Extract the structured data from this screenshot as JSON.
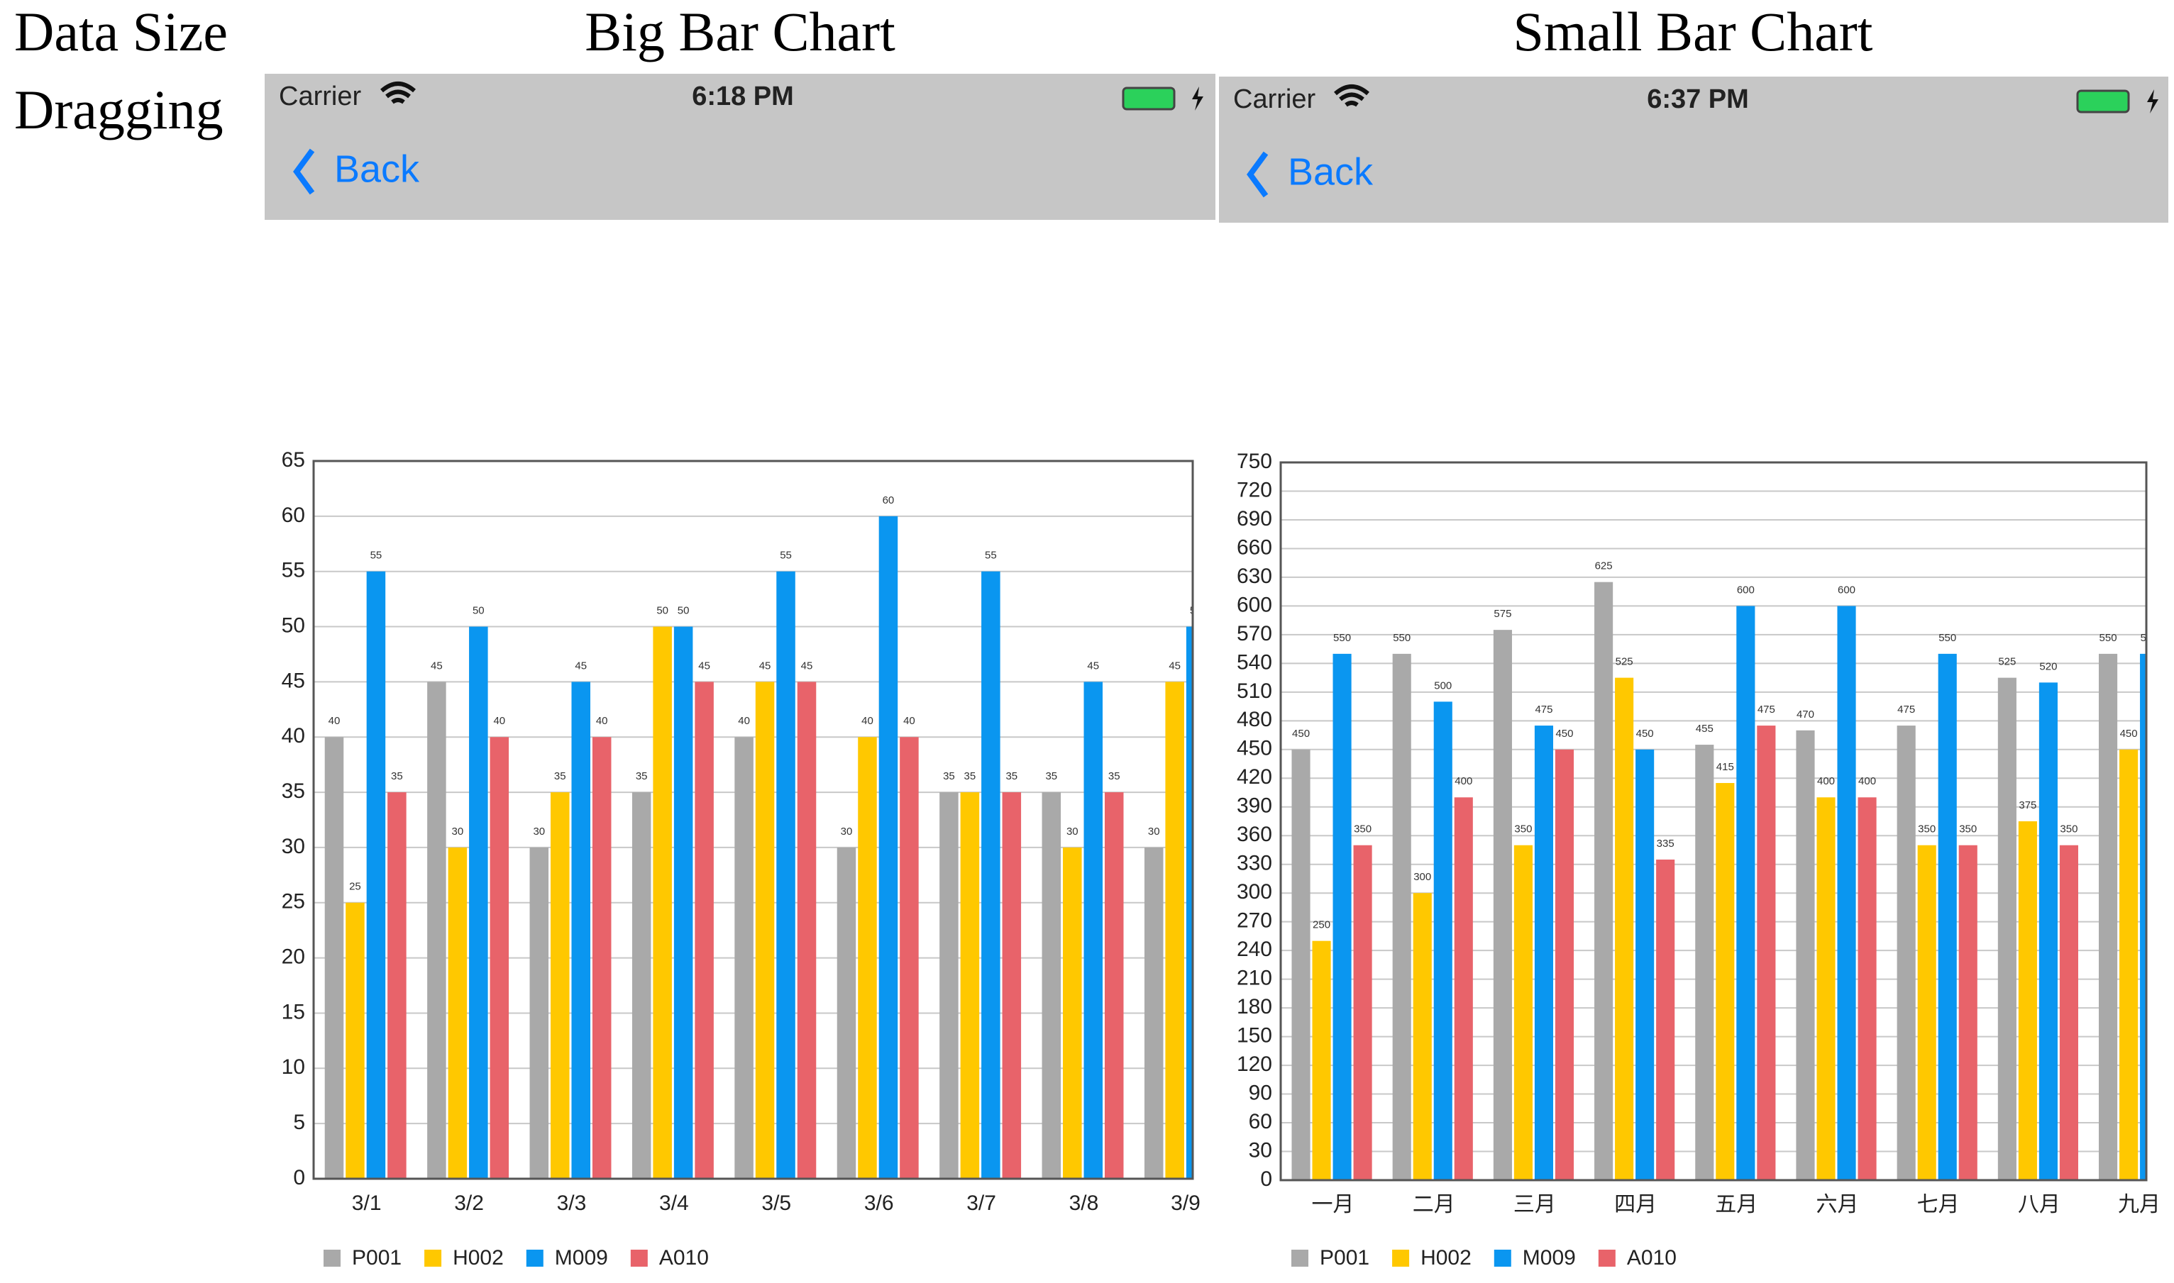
{
  "header": {
    "side_label_1": "Data Size",
    "side_label_2": "Dragging",
    "left_title": "Big Bar Chart",
    "right_title": "Small Bar Chart"
  },
  "phones": [
    {
      "carrier": "Carrier",
      "time": "6:18 PM",
      "back": "Back"
    },
    {
      "carrier": "Carrier",
      "time": "6:37 PM",
      "back": "Back"
    }
  ],
  "chart_data": [
    {
      "type": "bar",
      "categories": [
        "3/1",
        "3/2",
        "3/3",
        "3/4",
        "3/5",
        "3/6",
        "3/7",
        "3/8",
        "3/9"
      ],
      "series": [
        {
          "name": "P001",
          "color": "#a9a9a9",
          "values": [
            40,
            45,
            30,
            35,
            40,
            30,
            35,
            35,
            30
          ]
        },
        {
          "name": "H002",
          "color": "#ffc800",
          "values": [
            25,
            30,
            35,
            50,
            45,
            40,
            35,
            30,
            45
          ]
        },
        {
          "name": "M009",
          "color": "#0a96f0",
          "values": [
            55,
            50,
            45,
            50,
            55,
            60,
            55,
            45,
            50
          ]
        },
        {
          "name": "A010",
          "color": "#e8636a",
          "values": [
            35,
            40,
            40,
            45,
            45,
            40,
            35,
            35,
            null
          ]
        }
      ],
      "ylim": [
        0,
        65
      ],
      "yticks": [
        0,
        5,
        10,
        15,
        20,
        25,
        30,
        35,
        40,
        45,
        50,
        55,
        60,
        65
      ],
      "grid": true
    },
    {
      "type": "bar",
      "categories": [
        "一月",
        "二月",
        "三月",
        "四月",
        "五月",
        "六月",
        "七月",
        "八月",
        "九月"
      ],
      "series": [
        {
          "name": "P001",
          "color": "#a9a9a9",
          "values": [
            450,
            550,
            575,
            625,
            455,
            470,
            475,
            525,
            550
          ]
        },
        {
          "name": "H002",
          "color": "#ffc800",
          "values": [
            250,
            300,
            350,
            525,
            415,
            400,
            350,
            375,
            450
          ]
        },
        {
          "name": "M009",
          "color": "#0a96f0",
          "values": [
            550,
            500,
            475,
            450,
            600,
            600,
            550,
            520,
            550
          ]
        },
        {
          "name": "A010",
          "color": "#e8636a",
          "values": [
            350,
            400,
            450,
            335,
            475,
            400,
            350,
            350,
            null
          ]
        }
      ],
      "ylim": [
        0,
        750
      ],
      "yticks": [
        0,
        30,
        60,
        90,
        120,
        150,
        180,
        210,
        240,
        270,
        300,
        330,
        360,
        390,
        420,
        450,
        480,
        510,
        540,
        570,
        600,
        630,
        660,
        690,
        720,
        750
      ],
      "grid": true
    }
  ]
}
